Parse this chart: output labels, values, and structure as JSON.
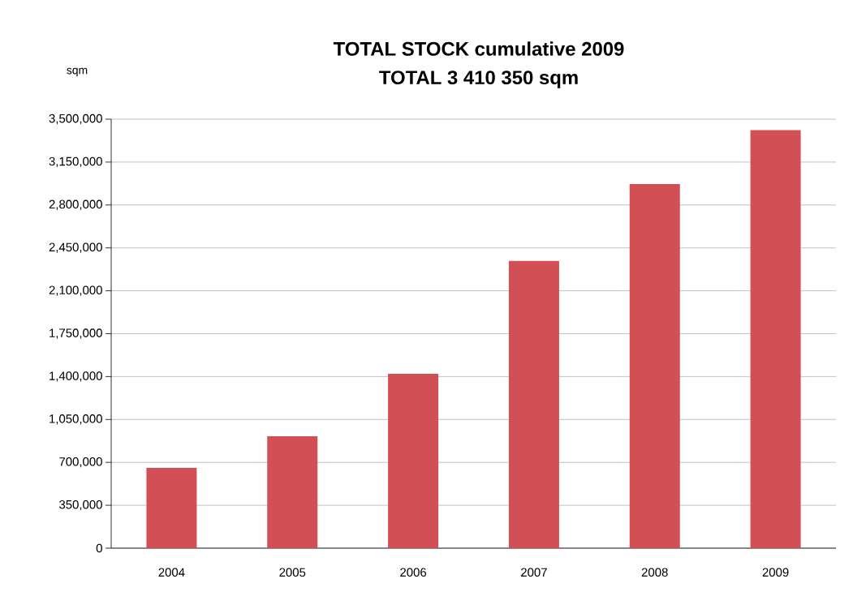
{
  "chart_data": {
    "type": "bar",
    "title": "TOTAL STOCK cumulative 2009",
    "subtitle": "TOTAL 3 410 350 sqm",
    "ylabel": "sqm",
    "categories": [
      "2004",
      "2005",
      "2006",
      "2007",
      "2008",
      "2009"
    ],
    "values": [
      655000,
      913000,
      1423000,
      2343000,
      2971000,
      3410350
    ],
    "color": "#d24f55",
    "ylim": [
      0,
      3500000
    ],
    "yticks": [
      0,
      {
        "value": 350000,
        "label": "350,000"
      },
      {
        "value": 700000,
        "label": "700,000"
      },
      {
        "value": 1050000,
        "label": "1,050,000"
      },
      {
        "value": 1400000,
        "label": "1,400,000"
      },
      {
        "value": 1750000,
        "label": "1,750,000"
      },
      {
        "value": 2100000,
        "label": "2,100,000"
      },
      {
        "value": 2450000,
        "label": "2,450,000"
      },
      {
        "value": 2800000,
        "label": "2,800,000"
      },
      {
        "value": 3150000,
        "label": "3,150,000"
      },
      {
        "value": 3500000,
        "label": "3,500,000"
      }
    ],
    "grid": "y"
  }
}
